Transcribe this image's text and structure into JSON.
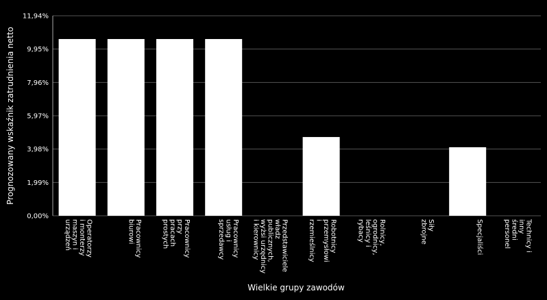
{
  "chart_data": {
    "type": "bar",
    "x_label": "Wielkie grupy zawodów",
    "y_label": "Prognozowany wskaźnik zatrudnienia netto",
    "categories": [
      "Operatorzy\ni monterzy\nmaszyn i\nurządzeń",
      "Pracownicy\nbiurowi",
      "Pracownicy\nprzy\npracach\nprostych",
      "Pracownicy\nusług i\nsprzedawcy",
      "Przedstawiciele\nwładz\npublicznych,\nwyżsi urzędnicy\ni kierownicy",
      "Robotnicy\nprzemysłowi\ni\nrzemieślnicy",
      "Rolnicy,\nogrodnicy,\nleśnicy i\nrybacy",
      "Siły\nzbrojne",
      "Specjaliści",
      "Technicy i\ninny\nśredni\npersonel"
    ],
    "values": [
      10.55,
      10.55,
      10.55,
      10.55,
      null,
      4.7,
      null,
      null,
      4.09,
      null
    ],
    "color": "#ffffff",
    "ylim": [
      0,
      11.94
    ],
    "yticks": [
      {
        "value": 0,
        "label": "0,00%"
      },
      {
        "value": 1.99,
        "label": "1,99%"
      },
      {
        "value": 3.98,
        "label": "3,98%"
      },
      {
        "value": 5.97,
        "label": "5,97%"
      },
      {
        "value": 7.96,
        "label": "7,96%"
      },
      {
        "value": 9.95,
        "label": "9,95%"
      },
      {
        "value": 11.94,
        "label": "11,94%"
      }
    ],
    "grid": true
  }
}
